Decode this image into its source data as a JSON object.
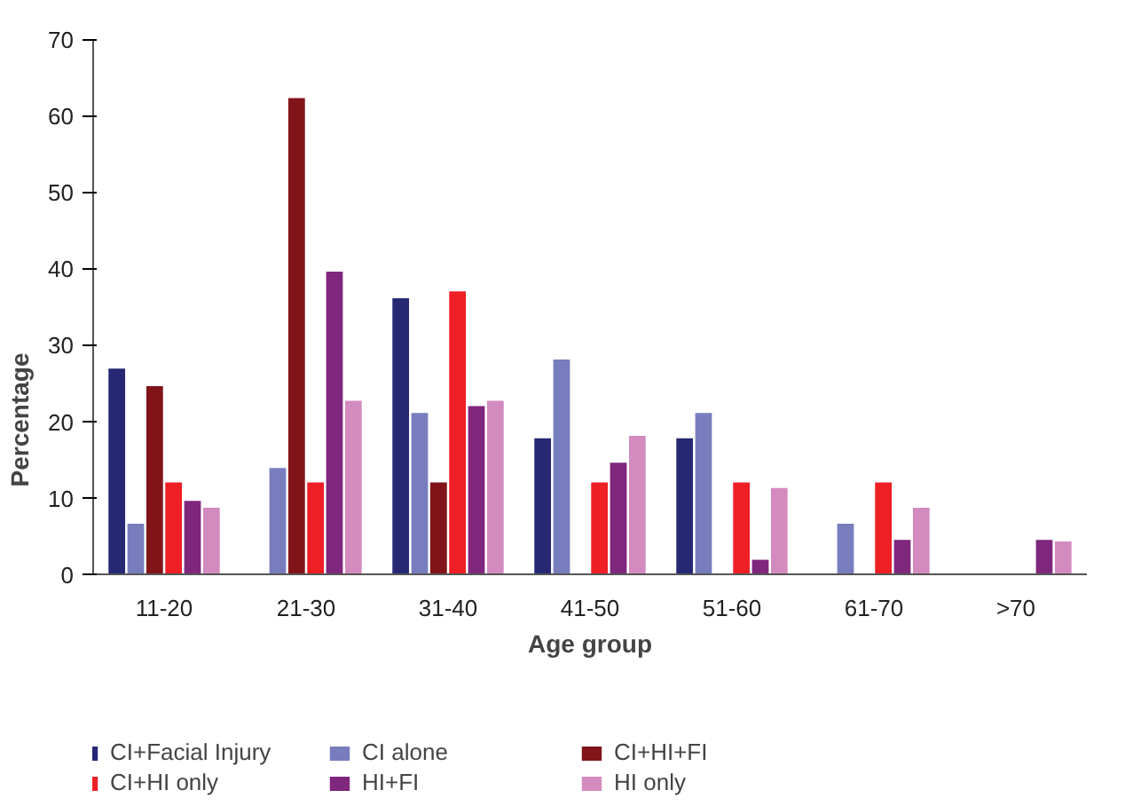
{
  "chart_data": {
    "type": "bar",
    "xlabel": "Age group",
    "ylabel": "Percentage",
    "categories": [
      "11-20",
      "21-30",
      "31-40",
      "41-50",
      "51-60",
      "61-70",
      ">70"
    ],
    "series": [
      {
        "name": "CI+Facial Injury",
        "color": "#262874",
        "values": [
          27.0,
          0,
          36.2,
          17.9,
          17.9,
          0,
          0
        ]
      },
      {
        "name": "CI alone",
        "color": "#787dbd",
        "values": [
          6.7,
          14.0,
          21.2,
          28.2,
          21.2,
          6.7,
          0
        ]
      },
      {
        "name": "CI+HI+FI",
        "color": "#811418",
        "values": [
          24.7,
          62.4,
          12.1,
          0,
          0,
          0,
          0
        ]
      },
      {
        "name": "CI+HI only",
        "color": "#ee1f25",
        "values": [
          12.1,
          12.1,
          37.1,
          12.1,
          12.1,
          12.1,
          0
        ]
      },
      {
        "name": "HI+FI",
        "color": "#7f267d",
        "values": [
          9.7,
          39.7,
          22.1,
          14.7,
          2.0,
          4.6,
          4.6
        ]
      },
      {
        "name": "HI only",
        "color": "#d38bbf",
        "values": [
          8.8,
          22.8,
          22.8,
          18.2,
          11.4,
          8.8,
          4.4
        ]
      }
    ],
    "ylim": [
      0,
      70
    ],
    "yticks": [
      0,
      10,
      20,
      30,
      40,
      50,
      60,
      70
    ],
    "grid": false,
    "legend": "bottom"
  }
}
